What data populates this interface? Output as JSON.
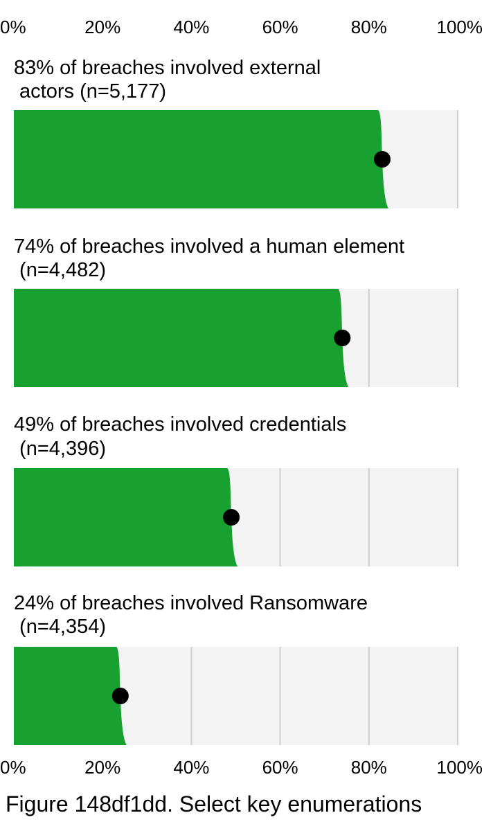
{
  "chart_data": {
    "type": "bar",
    "orientation": "horizontal",
    "xlim": [
      0,
      100
    ],
    "x_ticks": [
      "0%",
      "20%",
      "40%",
      "60%",
      "80%",
      "100%"
    ],
    "grid": true,
    "series": [
      {
        "values": [
          83,
          74,
          49,
          24
        ]
      }
    ],
    "panels": [
      {
        "label_line1": "83% of breaches involved external",
        "label_line2": " actors (n=5,177)",
        "value": 83
      },
      {
        "label_line1": "74% of breaches involved a human element",
        "label_line2": " (n=4,482)",
        "value": 74
      },
      {
        "label_line1": "49% of breaches involved credentials",
        "label_line2": " (n=4,396)",
        "value": 49
      },
      {
        "label_line1": "24% of breaches involved Ransomware",
        "label_line2": " (n=4,354)",
        "value": 24
      }
    ],
    "caption": "Figure 148df1dd. Select key enumerations"
  },
  "colors": {
    "bar": "#18a030",
    "track": "#f3f3f3",
    "grid": "#cfcfcf",
    "marker": "#000000",
    "text": "#000000"
  }
}
